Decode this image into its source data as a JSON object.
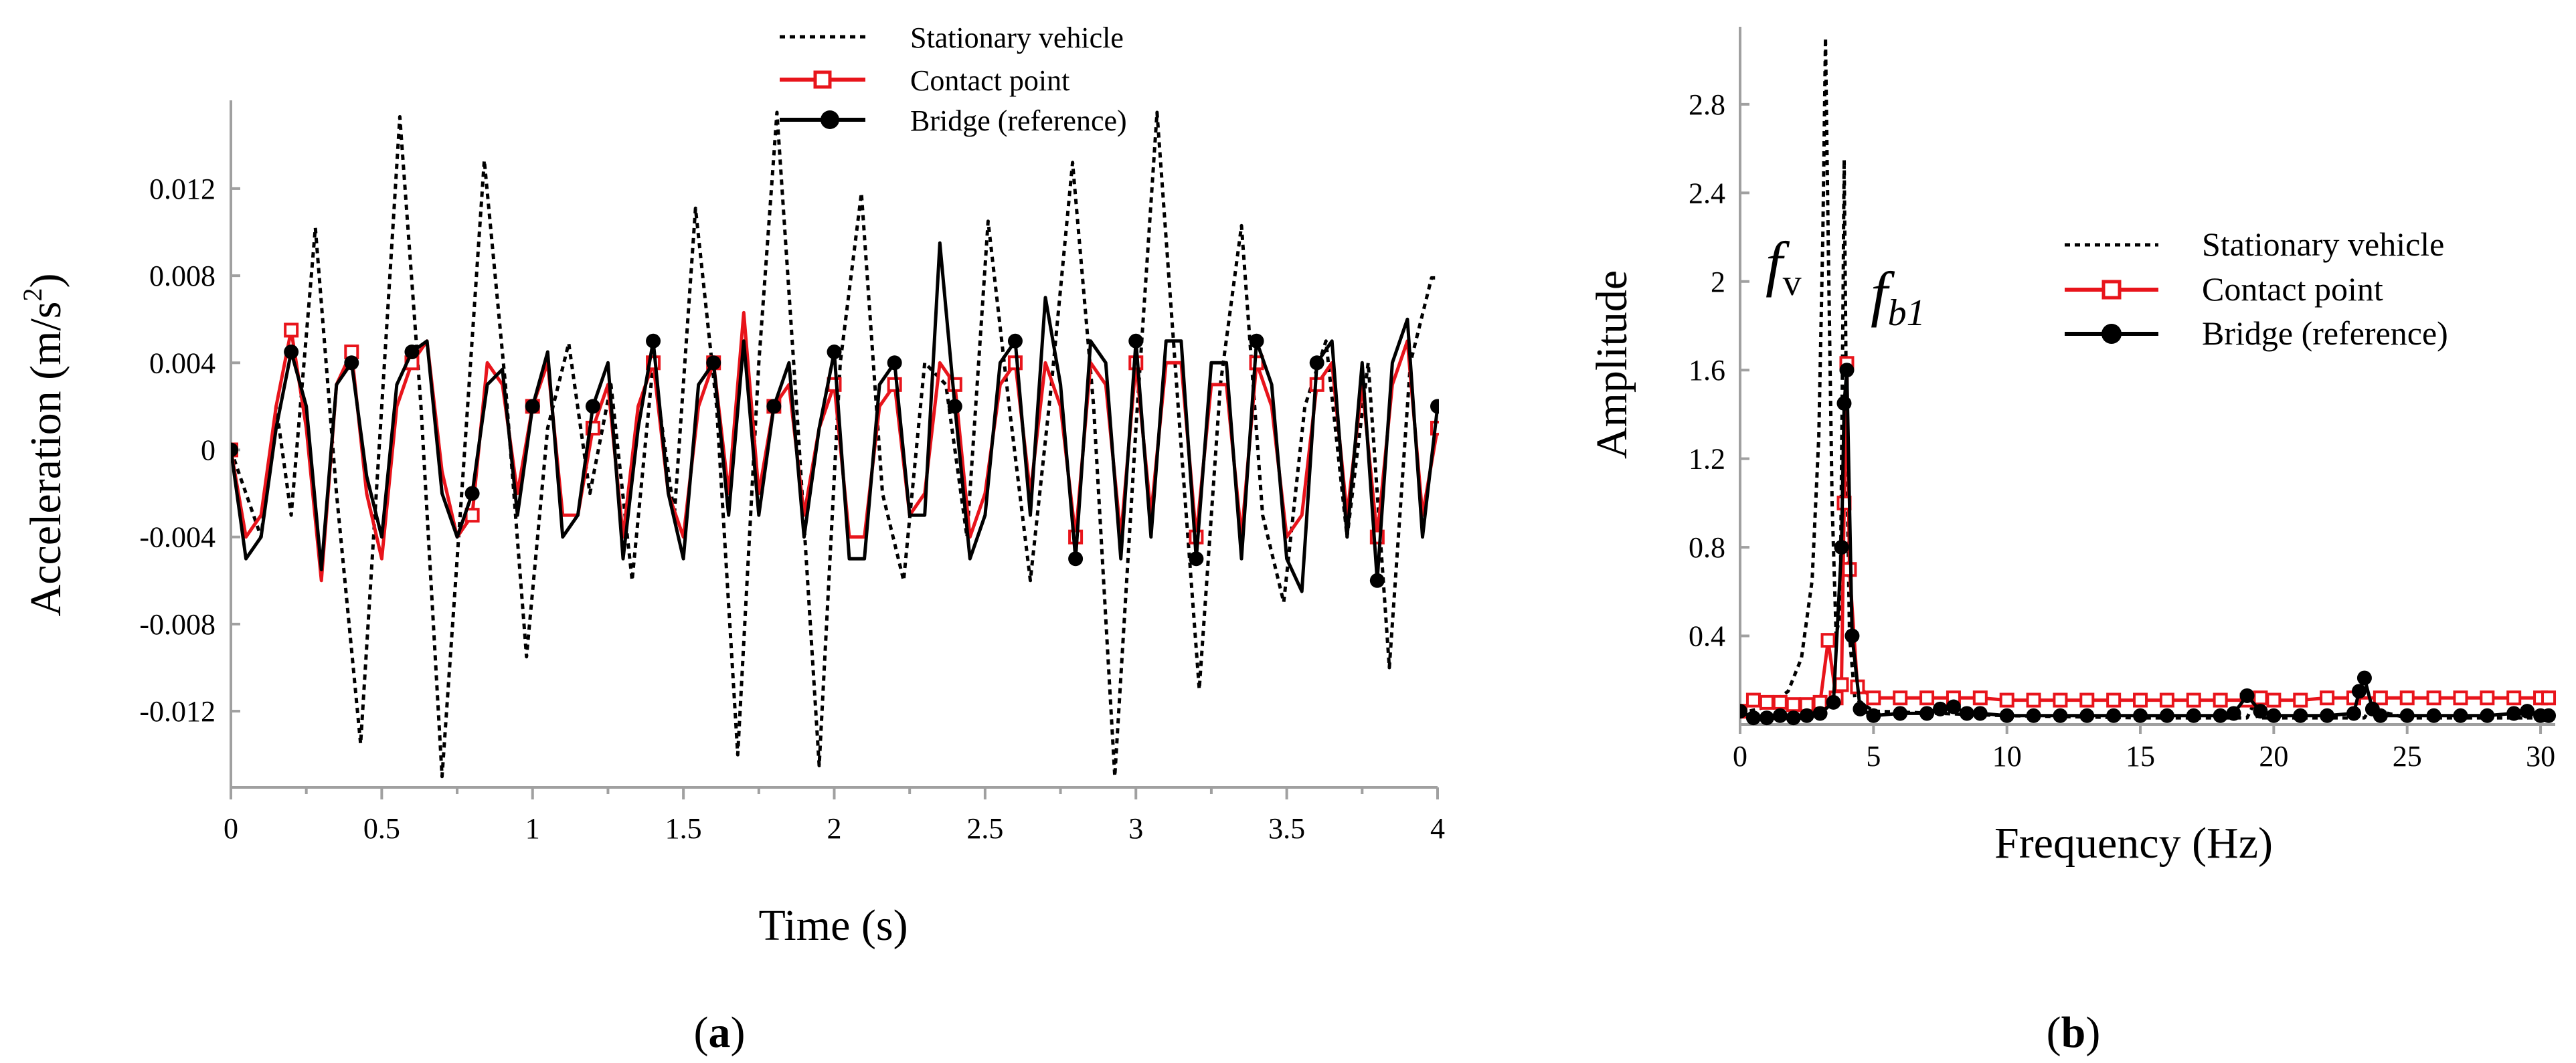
{
  "colors": {
    "black": "#000000",
    "red": "#e8141b",
    "axis": "#a0a0a0"
  },
  "panel_a_label": {
    "open": "(",
    "letter": "a",
    "close": ")"
  },
  "panel_b_label": {
    "open": "(",
    "letter": "b",
    "close": ")"
  },
  "legend_names": [
    "Stationary vehicle",
    "Contact point",
    "Bridge (reference)"
  ],
  "annotations": {
    "fv_main": "f",
    "fv_sub": "v",
    "fb1": "f",
    "fb1_sub": "b1"
  },
  "chart_data": [
    {
      "id": "a",
      "type": "line",
      "title": "",
      "xlabel": "Time (s)",
      "ylabel_main": "Acceleration (m/s",
      "ylabel_sup": "2",
      "ylabel_end": ")",
      "xlim": [
        0,
        4
      ],
      "ylim": [
        -0.0155,
        0.0155
      ],
      "x_ticks": [
        0,
        0.5,
        1,
        1.5,
        2,
        2.5,
        3,
        3.5,
        4
      ],
      "x_tick_labels": [
        "0",
        "0.5",
        "1",
        "1.5",
        "2",
        "2.5",
        "3",
        "3.5",
        "4"
      ],
      "y_ticks": [
        0.012,
        0.008,
        0.004,
        0,
        -0.004,
        -0.008,
        -0.012
      ],
      "y_tick_labels": [
        "0.012",
        "0.008",
        "0.004",
        "0",
        "-0.004",
        "-0.008",
        "-0.012"
      ],
      "legend_position": "top-center",
      "series": [
        {
          "name": "Stationary vehicle",
          "style": "dotted",
          "x": [
            0,
            0.1,
            0.15,
            0.2,
            0.28,
            0.35,
            0.43,
            0.5,
            0.56,
            0.63,
            0.7,
            0.77,
            0.84,
            0.91,
            0.98,
            1.05,
            1.12,
            1.19,
            1.26,
            1.33,
            1.4,
            1.47,
            1.54,
            1.61,
            1.68,
            1.75,
            1.81,
            1.88,
            1.95,
            2.02,
            2.09,
            2.16,
            2.23,
            2.3,
            2.37,
            2.44,
            2.51,
            2.58,
            2.65,
            2.72,
            2.79,
            2.86,
            2.93,
            3.0,
            3.07,
            3.14,
            3.21,
            3.28,
            3.35,
            3.42,
            3.49,
            3.56,
            3.63,
            3.7,
            3.77,
            3.84,
            3.91,
            3.98,
            4.0
          ],
          "y": [
            0,
            -0.004,
            0.002,
            -0.003,
            0.0102,
            -0.002,
            -0.0135,
            0.002,
            0.0153,
            0.002,
            -0.015,
            -0.001,
            0.0133,
            0.003,
            -0.0095,
            0.001,
            0.0049,
            -0.002,
            0.003,
            -0.006,
            0.004,
            -0.003,
            0.0111,
            0.002,
            -0.014,
            0.004,
            0.0155,
            0.001,
            -0.0145,
            0.004,
            0.0118,
            -0.002,
            -0.006,
            0.004,
            0.003,
            -0.004,
            0.0105,
            0.002,
            -0.006,
            0.003,
            0.0132,
            0.002,
            -0.015,
            0.001,
            0.0155,
            0.002,
            -0.011,
            0.003,
            0.0103,
            -0.003,
            -0.007,
            0.002,
            0.005,
            -0.004,
            0.004,
            -0.01,
            0.004,
            0.0079,
            0.0079
          ]
        },
        {
          "name": "Contact point",
          "style": "solid-square",
          "x": [
            0,
            0.05,
            0.1,
            0.15,
            0.2,
            0.25,
            0.3,
            0.35,
            0.4,
            0.45,
            0.5,
            0.55,
            0.6,
            0.65,
            0.7,
            0.75,
            0.8,
            0.85,
            0.9,
            0.95,
            1.0,
            1.05,
            1.1,
            1.15,
            1.2,
            1.25,
            1.3,
            1.35,
            1.4,
            1.45,
            1.5,
            1.55,
            1.6,
            1.65,
            1.7,
            1.75,
            1.8,
            1.85,
            1.9,
            1.95,
            2.0,
            2.05,
            2.1,
            2.15,
            2.2,
            2.25,
            2.3,
            2.35,
            2.4,
            2.45,
            2.5,
            2.55,
            2.6,
            2.65,
            2.7,
            2.75,
            2.8,
            2.85,
            2.9,
            2.95,
            3.0,
            3.05,
            3.1,
            3.15,
            3.2,
            3.25,
            3.3,
            3.35,
            3.4,
            3.45,
            3.5,
            3.55,
            3.6,
            3.65,
            3.7,
            3.75,
            3.8,
            3.85,
            3.9,
            3.95,
            4.0
          ],
          "y": [
            0,
            -0.004,
            -0.003,
            0.002,
            0.0055,
            0.001,
            -0.006,
            0.003,
            0.0045,
            -0.002,
            -0.005,
            0.002,
            0.004,
            0.005,
            -0.001,
            -0.004,
            -0.003,
            0.004,
            0.003,
            -0.002,
            0.002,
            0.004,
            -0.003,
            -0.003,
            0.001,
            0.003,
            -0.004,
            0.002,
            0.004,
            -0.002,
            -0.004,
            0.002,
            0.004,
            -0.002,
            0.0063,
            -0.002,
            0.002,
            0.003,
            -0.003,
            0.001,
            0.003,
            -0.004,
            -0.004,
            0.002,
            0.003,
            -0.003,
            -0.002,
            0.004,
            0.003,
            -0.004,
            -0.002,
            0.003,
            0.004,
            -0.002,
            0.004,
            0.002,
            -0.004,
            0.004,
            0.003,
            -0.004,
            0.004,
            -0.003,
            0.004,
            0.004,
            -0.004,
            0.003,
            0.003,
            -0.004,
            0.004,
            0.002,
            -0.004,
            -0.003,
            0.003,
            0.004,
            -0.003,
            0.003,
            -0.004,
            0.003,
            0.005,
            -0.003,
            0.001
          ]
        },
        {
          "name": "Bridge (reference)",
          "style": "solid-circle",
          "x": [
            0,
            0.05,
            0.1,
            0.15,
            0.2,
            0.25,
            0.3,
            0.35,
            0.4,
            0.45,
            0.5,
            0.55,
            0.6,
            0.65,
            0.7,
            0.75,
            0.8,
            0.85,
            0.9,
            0.95,
            1.0,
            1.05,
            1.1,
            1.15,
            1.2,
            1.25,
            1.3,
            1.35,
            1.4,
            1.45,
            1.5,
            1.55,
            1.6,
            1.65,
            1.7,
            1.75,
            1.8,
            1.85,
            1.9,
            1.95,
            2.0,
            2.05,
            2.1,
            2.15,
            2.2,
            2.25,
            2.3,
            2.35,
            2.4,
            2.45,
            2.5,
            2.55,
            2.6,
            2.65,
            2.7,
            2.75,
            2.8,
            2.85,
            2.9,
            2.95,
            3.0,
            3.05,
            3.1,
            3.15,
            3.2,
            3.25,
            3.3,
            3.35,
            3.4,
            3.45,
            3.5,
            3.55,
            3.6,
            3.65,
            3.7,
            3.75,
            3.8,
            3.85,
            3.9,
            3.95,
            4.0
          ],
          "y": [
            0,
            -0.005,
            -0.004,
            0.001,
            0.0045,
            0.002,
            -0.0055,
            0.003,
            0.004,
            -0.0012,
            -0.004,
            0.003,
            0.0045,
            0.005,
            -0.002,
            -0.004,
            -0.002,
            0.003,
            0.0037,
            -0.003,
            0.002,
            0.0045,
            -0.004,
            -0.003,
            0.002,
            0.004,
            -0.005,
            0.001,
            0.005,
            -0.002,
            -0.005,
            0.003,
            0.004,
            -0.003,
            0.005,
            -0.003,
            0.002,
            0.004,
            -0.004,
            0.001,
            0.0045,
            -0.005,
            -0.005,
            0.003,
            0.004,
            -0.003,
            -0.003,
            0.0095,
            0.002,
            -0.005,
            -0.003,
            0.004,
            0.005,
            -0.003,
            0.007,
            0.003,
            -0.005,
            0.005,
            0.004,
            -0.005,
            0.005,
            -0.004,
            0.005,
            0.005,
            -0.005,
            0.004,
            0.004,
            -0.005,
            0.005,
            0.003,
            -0.005,
            -0.0065,
            0.004,
            0.005,
            -0.004,
            0.004,
            -0.006,
            0.004,
            0.006,
            -0.004,
            0.002
          ]
        }
      ]
    },
    {
      "id": "b",
      "type": "line",
      "title": "",
      "xlabel": "Frequency (Hz)",
      "ylabel": "Amplitude",
      "xlim": [
        0,
        30.5
      ],
      "ylim": [
        0,
        3.15
      ],
      "x_ticks": [
        0,
        5,
        10,
        15,
        20,
        25,
        30
      ],
      "x_tick_labels": [
        "0",
        "5",
        "10",
        "15",
        "20",
        "25",
        "30"
      ],
      "y_ticks": [
        2.8,
        2.4,
        2,
        1.6,
        1.2,
        0.8,
        0.4
      ],
      "y_tick_labels": [
        "2.8",
        "2.4",
        "2",
        "1.6",
        "1.2",
        "0.8",
        "0.4"
      ],
      "legend_position": "right",
      "series": [
        {
          "name": "Stationary vehicle",
          "style": "dotted",
          "x": [
            0,
            1,
            1.8,
            2.3,
            2.7,
            2.95,
            3.1,
            3.2,
            3.3,
            3.45,
            3.6,
            3.75,
            3.85,
            3.9,
            4.0,
            4.1,
            4.3,
            5.0,
            10,
            15,
            19,
            19.2,
            19.4,
            23.4,
            23.6,
            25,
            30.2
          ],
          "y": [
            0.05,
            0.08,
            0.15,
            0.3,
            0.65,
            1.3,
            2.2,
            3.1,
            2.2,
            1.0,
            0.4,
            0.5,
            1.8,
            2.55,
            1.2,
            0.4,
            0.12,
            0.06,
            0.04,
            0.03,
            0.03,
            0.08,
            0.03,
            0.03,
            0.07,
            0.03,
            0.03
          ]
        },
        {
          "name": "Contact point",
          "style": "solid-square",
          "x": [
            0,
            0.5,
            1,
            1.5,
            2,
            2.5,
            3,
            3.3,
            3.6,
            3.8,
            3.9,
            4.0,
            4.1,
            4.4,
            5,
            6,
            7,
            8,
            9,
            10,
            11,
            12,
            13,
            14,
            15,
            16,
            17,
            18,
            19,
            19.5,
            20,
            21,
            22,
            23,
            24,
            25,
            26,
            27,
            28,
            29,
            30,
            30.3
          ],
          "y": [
            0.06,
            0.11,
            0.1,
            0.1,
            0.09,
            0.09,
            0.1,
            0.38,
            0.12,
            0.18,
            1.0,
            1.63,
            0.7,
            0.17,
            0.12,
            0.12,
            0.12,
            0.12,
            0.12,
            0.11,
            0.11,
            0.11,
            0.11,
            0.11,
            0.11,
            0.11,
            0.11,
            0.11,
            0.11,
            0.12,
            0.11,
            0.11,
            0.12,
            0.12,
            0.12,
            0.12,
            0.12,
            0.12,
            0.12,
            0.12,
            0.12,
            0.12
          ]
        },
        {
          "name": "Bridge (reference)",
          "style": "solid-circle",
          "x": [
            0,
            0.5,
            1,
            1.5,
            2,
            2.5,
            3,
            3.5,
            3.8,
            3.9,
            4.0,
            4.2,
            4.5,
            5,
            6,
            7,
            7.5,
            8,
            8.5,
            9,
            10,
            11,
            12,
            13,
            14,
            15,
            16,
            17,
            18,
            18.5,
            19,
            19.5,
            20,
            21,
            22,
            23,
            23.2,
            23.4,
            23.7,
            24,
            25,
            26,
            27,
            28,
            29,
            29.5,
            30,
            30.3
          ],
          "y": [
            0.06,
            0.03,
            0.03,
            0.04,
            0.03,
            0.04,
            0.05,
            0.1,
            0.8,
            1.45,
            1.6,
            0.4,
            0.07,
            0.04,
            0.05,
            0.05,
            0.07,
            0.08,
            0.05,
            0.05,
            0.04,
            0.04,
            0.04,
            0.04,
            0.04,
            0.04,
            0.04,
            0.04,
            0.04,
            0.05,
            0.13,
            0.06,
            0.04,
            0.04,
            0.04,
            0.05,
            0.15,
            0.21,
            0.07,
            0.04,
            0.04,
            0.04,
            0.04,
            0.04,
            0.05,
            0.06,
            0.04,
            0.04
          ]
        }
      ]
    }
  ]
}
